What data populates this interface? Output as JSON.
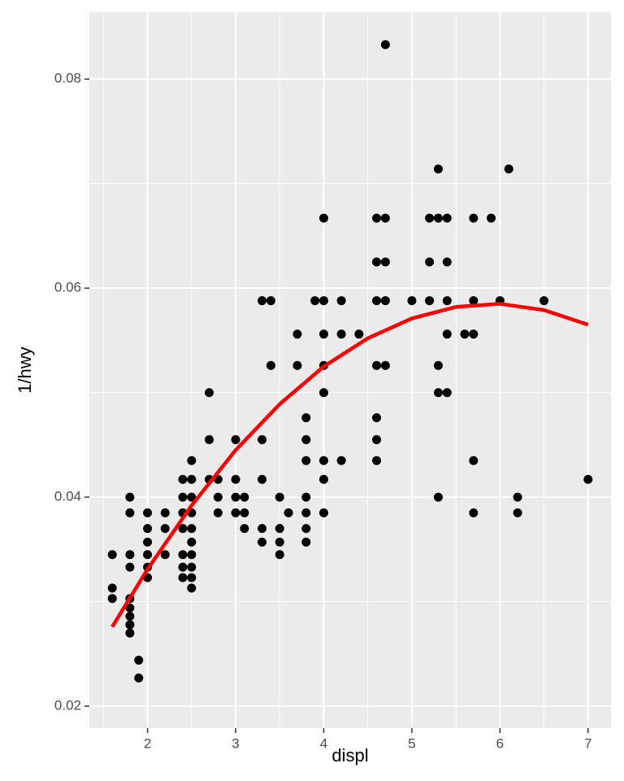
{
  "chart_data": {
    "type": "scatter",
    "x_label": "displ",
    "y_label": "1/hwy",
    "xlim": [
      1.34,
      7.26
    ],
    "ylim": [
      0.0179,
      0.0864
    ],
    "xticks": [
      2,
      3,
      4,
      5,
      6,
      7
    ],
    "yticks": [
      0.02,
      0.04,
      0.06,
      0.08
    ],
    "xminor": [
      1.5,
      2.5,
      3.5,
      4.5,
      5.5,
      6.5
    ],
    "yminor": [
      0.03,
      0.05,
      0.07
    ],
    "grid": true,
    "series": [
      {
        "type": "scatter",
        "color": "#000000",
        "x": [
          1.6,
          1.6,
          1.6,
          1.8,
          1.8,
          1.8,
          1.8,
          1.8,
          1.8,
          1.8,
          1.8,
          1.8,
          1.9,
          1.9,
          2,
          2,
          2,
          2,
          2,
          2,
          2.2,
          2.2,
          2.2,
          2.4,
          2.4,
          2.4,
          2.4,
          2.4,
          2.4,
          2.4,
          2.5,
          2.5,
          2.5,
          2.5,
          2.5,
          2.5,
          2.5,
          2.5,
          2.5,
          2.5,
          2.7,
          2.7,
          2.7,
          2.8,
          2.8,
          2.8,
          3,
          3,
          3,
          3,
          3.1,
          3.1,
          3.1,
          3.3,
          3.3,
          3.3,
          3.3,
          3.3,
          3.4,
          3.4,
          3.5,
          3.5,
          3.5,
          3.5,
          3.6,
          3.7,
          3.7,
          3.8,
          3.8,
          3.8,
          3.8,
          3.8,
          3.8,
          3.8,
          3.9,
          4,
          4,
          4,
          4,
          4,
          4,
          4,
          4,
          4.2,
          4.2,
          4.2,
          4.4,
          4.6,
          4.6,
          4.6,
          4.6,
          4.6,
          4.6,
          4.6,
          4.7,
          4.7,
          4.7,
          4.7,
          4.7,
          5,
          5.2,
          5.2,
          5.2,
          5.3,
          5.3,
          5.3,
          5.3,
          5.3,
          5.4,
          5.4,
          5.4,
          5.4,
          5.4,
          5.6,
          5.7,
          5.7,
          5.7,
          5.7,
          5.7,
          5.9,
          6,
          6.1,
          6.2,
          6.2,
          6.5,
          7
        ],
        "values": [
          0.0345,
          0.0313,
          0.0303,
          0.04,
          0.0385,
          0.0345,
          0.0333,
          0.0303,
          0.0294,
          0.0286,
          0.0278,
          0.027,
          0.0244,
          0.0227,
          0.0385,
          0.037,
          0.0357,
          0.0345,
          0.0333,
          0.0323,
          0.0385,
          0.037,
          0.0345,
          0.0417,
          0.04,
          0.0385,
          0.037,
          0.0345,
          0.0333,
          0.0323,
          0.0435,
          0.0417,
          0.04,
          0.0385,
          0.037,
          0.0357,
          0.0345,
          0.0333,
          0.0323,
          0.0313,
          0.05,
          0.0455,
          0.0417,
          0.0417,
          0.04,
          0.0385,
          0.0455,
          0.0417,
          0.04,
          0.0385,
          0.04,
          0.0385,
          0.037,
          0.0588,
          0.0455,
          0.0417,
          0.037,
          0.0357,
          0.0588,
          0.0526,
          0.04,
          0.037,
          0.0357,
          0.0345,
          0.0385,
          0.0556,
          0.0526,
          0.0476,
          0.0455,
          0.0435,
          0.04,
          0.0385,
          0.037,
          0.0357,
          0.0588,
          0.0667,
          0.0588,
          0.0556,
          0.0526,
          0.05,
          0.0435,
          0.0417,
          0.0385,
          0.0588,
          0.0556,
          0.0435,
          0.0556,
          0.0667,
          0.0625,
          0.0588,
          0.0526,
          0.0476,
          0.0455,
          0.0435,
          0.0833,
          0.0667,
          0.0625,
          0.0588,
          0.0526,
          0.0588,
          0.0667,
          0.0625,
          0.0588,
          0.0714,
          0.0667,
          0.0526,
          0.05,
          0.04,
          0.0667,
          0.0625,
          0.0588,
          0.0556,
          0.05,
          0.0556,
          0.0667,
          0.0588,
          0.0556,
          0.0435,
          0.0385,
          0.0667,
          0.0588,
          0.0714,
          0.04,
          0.0385,
          0.0588,
          0.0417
        ]
      },
      {
        "type": "line",
        "color": "#ff0000",
        "x": [
          1.6,
          2,
          2.5,
          3,
          3.5,
          4,
          4.5,
          5,
          5.5,
          6,
          6.5,
          7
        ],
        "values": [
          0.0276,
          0.0331,
          0.0392,
          0.0445,
          0.0489,
          0.0525,
          0.0552,
          0.0571,
          0.0582,
          0.0585,
          0.0579,
          0.0565
        ]
      }
    ]
  }
}
